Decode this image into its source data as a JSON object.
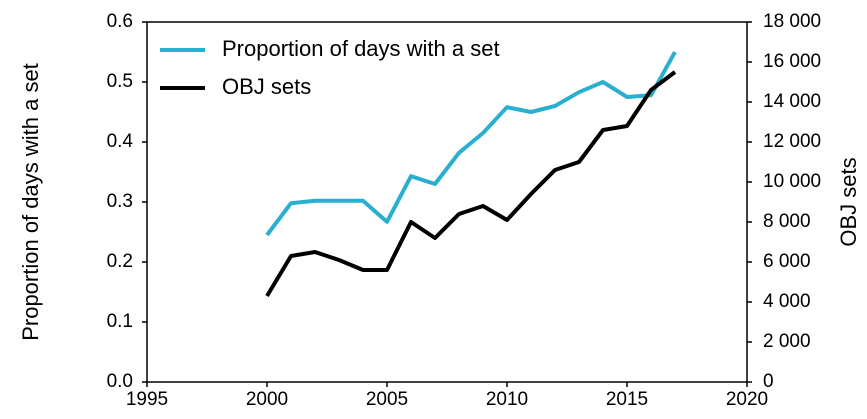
{
  "chart_data": {
    "type": "line",
    "x": [
      2000,
      2001,
      2002,
      2003,
      2004,
      2005,
      2006,
      2007,
      2008,
      2009,
      2010,
      2011,
      2012,
      2013,
      2014,
      2015,
      2016,
      2017
    ],
    "series": [
      {
        "name": "Proportion of days with a set",
        "color": "#29b0d0",
        "axis": "y",
        "values": [
          0.245,
          0.298,
          0.302,
          0.302,
          0.302,
          0.267,
          0.343,
          0.33,
          0.382,
          0.415,
          0.458,
          0.45,
          0.46,
          0.483,
          0.5,
          0.475,
          0.478,
          0.55
        ]
      },
      {
        "name": "OBJ sets",
        "color": "#000000",
        "axis": "y2",
        "values": [
          4300,
          6300,
          6500,
          6100,
          5600,
          5600,
          8000,
          7200,
          8400,
          8800,
          8100,
          9400,
          10600,
          11000,
          12600,
          12800,
          14600,
          15500
        ]
      }
    ],
    "xlim": [
      1995,
      2020
    ],
    "xticks": [
      1995,
      2000,
      2005,
      2010,
      2015,
      2020
    ],
    "ylabel": "Proportion of days with a set",
    "ylim": [
      0,
      0.6
    ],
    "yticks": [
      {
        "value": 0,
        "label": "0.0"
      },
      0.1,
      0.2,
      0.3,
      0.4,
      0.5,
      0.6
    ],
    "y2label": "OBJ sets",
    "y2lim": [
      0,
      18000
    ],
    "y2ticks": [
      0,
      {
        "value": 2000,
        "label": "2 000"
      },
      {
        "value": 4000,
        "label": "4 000"
      },
      {
        "value": 6000,
        "label": "6 000"
      },
      {
        "value": 8000,
        "label": "8 000"
      },
      {
        "value": 10000,
        "label": "10 000"
      },
      {
        "value": 12000,
        "label": "12 000"
      },
      {
        "value": 14000,
        "label": "14 000"
      },
      {
        "value": 16000,
        "label": "16 000"
      },
      {
        "value": 18000,
        "label": "18 000"
      }
    ],
    "legend": "upper left"
  }
}
